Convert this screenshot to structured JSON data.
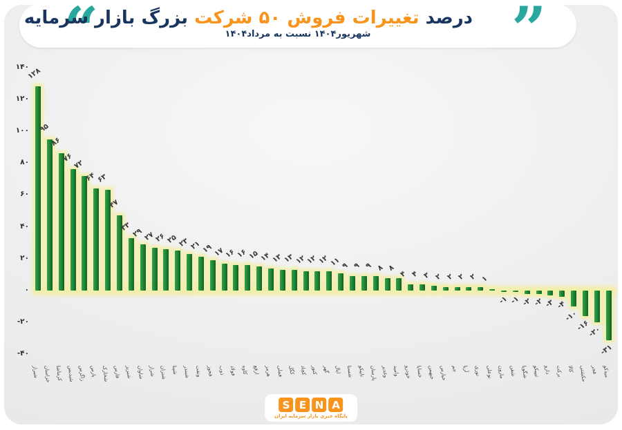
{
  "header": {
    "quote_open": "“",
    "quote_close": "”",
    "title_dark_1": "درصد",
    "title_orange": "تغییرات فروش ۵۰ شرکت",
    "title_dark_2": "بزرگ بازار سرمایه",
    "subtitle": "شهریور۱۴۰۴ نسبت به مرداد۱۴۰۴"
  },
  "colors": {
    "navy": "#17355e",
    "orange": "#f6941d",
    "teal": "#2aa89e",
    "bar_green_light": "#33a04a",
    "bar_green_mid": "#1d8534",
    "bar_green_dark": "#135e25",
    "glow": "#f2eeab",
    "label_gray": "#3a3a3a"
  },
  "chart_data": {
    "type": "bar",
    "title": "درصد تغییرات فروش ۵۰ شرکت بزرگ بازار سرمایه",
    "subtitle": "شهریور ۱۴۰۴ نسبت به مرداد ۱۴۰۴",
    "xlabel": "",
    "ylabel": "",
    "ylim": [
      -40,
      140
    ],
    "grid": false,
    "legend": false,
    "y_ticks": [
      {
        "value": 140,
        "label": "۱۴۰"
      },
      {
        "value": 120,
        "label": "۱۲۰"
      },
      {
        "value": 100,
        "label": "۱۰۰"
      },
      {
        "value": 80,
        "label": "۸۰"
      },
      {
        "value": 60,
        "label": "۶۰"
      },
      {
        "value": 40,
        "label": "۴۰"
      },
      {
        "value": 20,
        "label": "۲۰"
      },
      {
        "value": 0,
        "label": "۰"
      },
      {
        "value": -20,
        "label": "-۲۰"
      },
      {
        "value": -40,
        "label": "-۴۰"
      }
    ],
    "categories": [
      "شیراز",
      "خراسان",
      "کرماشا",
      "شپدیس",
      "زاگرس",
      "پارس",
      "شخارک",
      "فارس",
      "شبریز",
      "شاوان",
      "شراز",
      "شتران",
      "شپنا",
      "شبندر",
      "ونفت",
      "فخوز",
      "ذوب",
      "فولاد",
      "کاوه",
      "ارفع",
      "هرمز",
      "فملی",
      "کگل",
      "کچاد",
      "کنور",
      "گهر",
      "اپال",
      "شستا",
      "تاپیکو",
      "پارسان",
      "وغدیر",
      "وامید",
      "خودرو",
      "خساپا",
      "خبهمن",
      "خپارس",
      "جم",
      "آریا",
      "نوری",
      "بوعلی",
      "مارون",
      "شفن",
      "شگویا",
      "تیپیکو",
      "دارو",
      "برکت",
      "کالا",
      "حکشتی",
      "فجر",
      "میدکو"
    ],
    "values": [
      128,
      95,
      86,
      76,
      72,
      64,
      63,
      47,
      33,
      29,
      27,
      26,
      25,
      23,
      21,
      19,
      17,
      16,
      16,
      15,
      14,
      13,
      13,
      12,
      12,
      12,
      11,
      9,
      9,
      9,
      8,
      8,
      4,
      4,
      3,
      2,
      2,
      2,
      2,
      1,
      -1,
      -1,
      -2,
      -2,
      -3,
      -4,
      -10,
      -16,
      -20,
      -31
    ],
    "value_labels": [
      "۱۲۸",
      "۹۵",
      "۸۶",
      "۷۶",
      "۷۲",
      "۶۴",
      "۶۳",
      "۴۷",
      "۳۳",
      "۲۹",
      "۲۷",
      "۲۶",
      "۲۵",
      "۲۳",
      "۲۱",
      "۱۹",
      "۱۷",
      "۱۶",
      "۱۶",
      "۱۵",
      "۱۴",
      "۱۳",
      "۱۳",
      "۱۲",
      "۱۲",
      "۱۲",
      "۱۱",
      "۹",
      "۹",
      "۹",
      "۸",
      "۸",
      "۴",
      "۴",
      "۳",
      "۲",
      "۲",
      "۲",
      "۲",
      "۱",
      "-۱",
      "-۱",
      "-۲",
      "-۲",
      "-۳",
      "-۴",
      "-۱۰",
      "-۱۶",
      "-۲۰",
      "-۳۱"
    ]
  },
  "footer": {
    "logo_letters": [
      "S",
      "E",
      "N",
      "A"
    ],
    "tagline": "پایگاه خبری بازار سرمایه ایران"
  }
}
